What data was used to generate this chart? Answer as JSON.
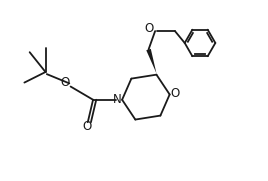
{
  "bg_color": "#ffffff",
  "line_color": "#1a1a1a",
  "line_width": 1.3,
  "figure_size": [
    2.68,
    1.81
  ],
  "dpi": 100,
  "xlim": [
    0,
    10
  ],
  "ylim": [
    0,
    6.8
  ]
}
